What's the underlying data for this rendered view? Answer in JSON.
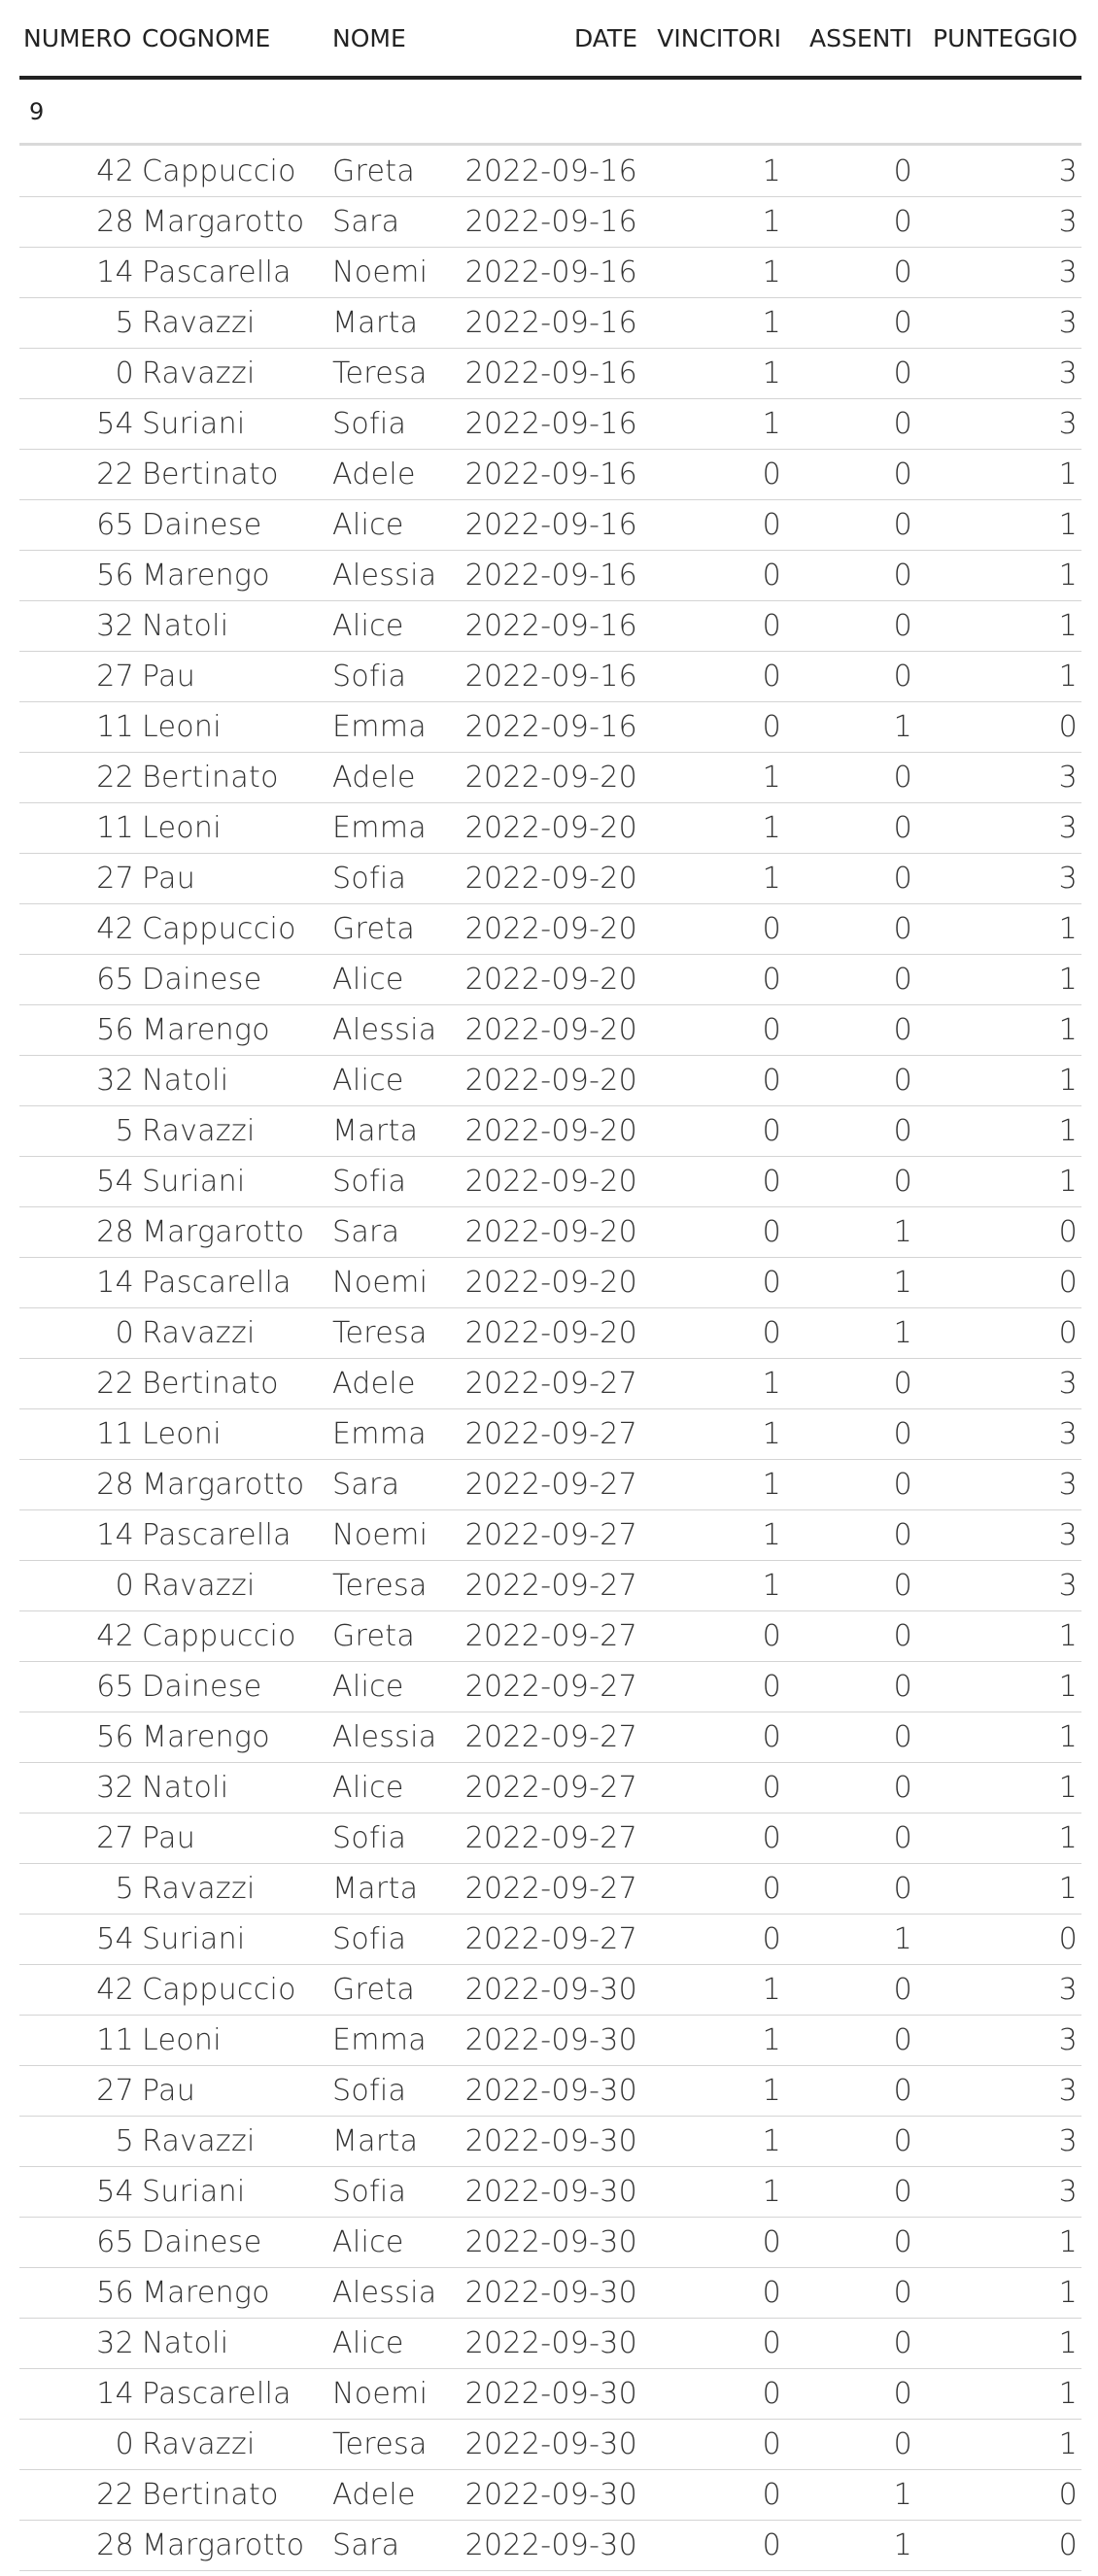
{
  "table": {
    "headers": {
      "numero": "NUMERO",
      "cognome": "COGNOME",
      "nome": "NOME",
      "date": "DATE",
      "vincitori": "VINCITORI",
      "assenti": "ASSENTI",
      "punteggio": "PUNTEGGIO"
    },
    "group_label": "9",
    "rows": [
      [
        "42",
        "Cappuccio",
        "Greta",
        "2022-09-16",
        "1",
        "0",
        "3"
      ],
      [
        "28",
        "Margarotto",
        "Sara",
        "2022-09-16",
        "1",
        "0",
        "3"
      ],
      [
        "14",
        "Pascarella",
        "Noemi",
        "2022-09-16",
        "1",
        "0",
        "3"
      ],
      [
        "5",
        "Ravazzi",
        "Marta",
        "2022-09-16",
        "1",
        "0",
        "3"
      ],
      [
        "0",
        "Ravazzi",
        "Teresa",
        "2022-09-16",
        "1",
        "0",
        "3"
      ],
      [
        "54",
        "Suriani",
        "Sofia",
        "2022-09-16",
        "1",
        "0",
        "3"
      ],
      [
        "22",
        "Bertinato",
        "Adele",
        "2022-09-16",
        "0",
        "0",
        "1"
      ],
      [
        "65",
        "Dainese",
        "Alice",
        "2022-09-16",
        "0",
        "0",
        "1"
      ],
      [
        "56",
        "Marengo",
        "Alessia",
        "2022-09-16",
        "0",
        "0",
        "1"
      ],
      [
        "32",
        "Natoli",
        "Alice",
        "2022-09-16",
        "0",
        "0",
        "1"
      ],
      [
        "27",
        "Pau",
        "Sofia",
        "2022-09-16",
        "0",
        "0",
        "1"
      ],
      [
        "11",
        "Leoni",
        "Emma",
        "2022-09-16",
        "0",
        "1",
        "0"
      ],
      [
        "22",
        "Bertinato",
        "Adele",
        "2022-09-20",
        "1",
        "0",
        "3"
      ],
      [
        "11",
        "Leoni",
        "Emma",
        "2022-09-20",
        "1",
        "0",
        "3"
      ],
      [
        "27",
        "Pau",
        "Sofia",
        "2022-09-20",
        "1",
        "0",
        "3"
      ],
      [
        "42",
        "Cappuccio",
        "Greta",
        "2022-09-20",
        "0",
        "0",
        "1"
      ],
      [
        "65",
        "Dainese",
        "Alice",
        "2022-09-20",
        "0",
        "0",
        "1"
      ],
      [
        "56",
        "Marengo",
        "Alessia",
        "2022-09-20",
        "0",
        "0",
        "1"
      ],
      [
        "32",
        "Natoli",
        "Alice",
        "2022-09-20",
        "0",
        "0",
        "1"
      ],
      [
        "5",
        "Ravazzi",
        "Marta",
        "2022-09-20",
        "0",
        "0",
        "1"
      ],
      [
        "54",
        "Suriani",
        "Sofia",
        "2022-09-20",
        "0",
        "0",
        "1"
      ],
      [
        "28",
        "Margarotto",
        "Sara",
        "2022-09-20",
        "0",
        "1",
        "0"
      ],
      [
        "14",
        "Pascarella",
        "Noemi",
        "2022-09-20",
        "0",
        "1",
        "0"
      ],
      [
        "0",
        "Ravazzi",
        "Teresa",
        "2022-09-20",
        "0",
        "1",
        "0"
      ],
      [
        "22",
        "Bertinato",
        "Adele",
        "2022-09-27",
        "1",
        "0",
        "3"
      ],
      [
        "11",
        "Leoni",
        "Emma",
        "2022-09-27",
        "1",
        "0",
        "3"
      ],
      [
        "28",
        "Margarotto",
        "Sara",
        "2022-09-27",
        "1",
        "0",
        "3"
      ],
      [
        "14",
        "Pascarella",
        "Noemi",
        "2022-09-27",
        "1",
        "0",
        "3"
      ],
      [
        "0",
        "Ravazzi",
        "Teresa",
        "2022-09-27",
        "1",
        "0",
        "3"
      ],
      [
        "42",
        "Cappuccio",
        "Greta",
        "2022-09-27",
        "0",
        "0",
        "1"
      ],
      [
        "65",
        "Dainese",
        "Alice",
        "2022-09-27",
        "0",
        "0",
        "1"
      ],
      [
        "56",
        "Marengo",
        "Alessia",
        "2022-09-27",
        "0",
        "0",
        "1"
      ],
      [
        "32",
        "Natoli",
        "Alice",
        "2022-09-27",
        "0",
        "0",
        "1"
      ],
      [
        "27",
        "Pau",
        "Sofia",
        "2022-09-27",
        "0",
        "0",
        "1"
      ],
      [
        "5",
        "Ravazzi",
        "Marta",
        "2022-09-27",
        "0",
        "0",
        "1"
      ],
      [
        "54",
        "Suriani",
        "Sofia",
        "2022-09-27",
        "0",
        "1",
        "0"
      ],
      [
        "42",
        "Cappuccio",
        "Greta",
        "2022-09-30",
        "1",
        "0",
        "3"
      ],
      [
        "11",
        "Leoni",
        "Emma",
        "2022-09-30",
        "1",
        "0",
        "3"
      ],
      [
        "27",
        "Pau",
        "Sofia",
        "2022-09-30",
        "1",
        "0",
        "3"
      ],
      [
        "5",
        "Ravazzi",
        "Marta",
        "2022-09-30",
        "1",
        "0",
        "3"
      ],
      [
        "54",
        "Suriani",
        "Sofia",
        "2022-09-30",
        "1",
        "0",
        "3"
      ],
      [
        "65",
        "Dainese",
        "Alice",
        "2022-09-30",
        "0",
        "0",
        "1"
      ],
      [
        "56",
        "Marengo",
        "Alessia",
        "2022-09-30",
        "0",
        "0",
        "1"
      ],
      [
        "32",
        "Natoli",
        "Alice",
        "2022-09-30",
        "0",
        "0",
        "1"
      ],
      [
        "14",
        "Pascarella",
        "Noemi",
        "2022-09-30",
        "0",
        "0",
        "1"
      ],
      [
        "0",
        "Ravazzi",
        "Teresa",
        "2022-09-30",
        "0",
        "0",
        "1"
      ],
      [
        "22",
        "Bertinato",
        "Adele",
        "2022-09-30",
        "0",
        "1",
        "0"
      ],
      [
        "28",
        "Margarotto",
        "Sara",
        "2022-09-30",
        "0",
        "1",
        "0"
      ]
    ]
  }
}
